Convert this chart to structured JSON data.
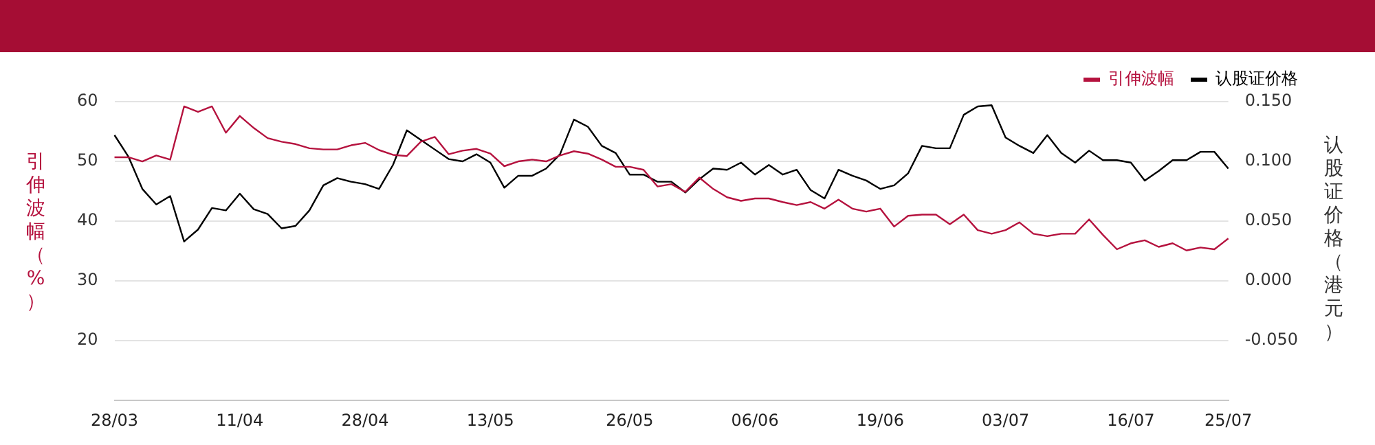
{
  "chart_data": {
    "type": "line",
    "categories": [
      "28/03",
      null,
      null,
      null,
      null,
      null,
      null,
      null,
      null,
      "11/04",
      null,
      null,
      null,
      null,
      null,
      null,
      null,
      null,
      "28/04",
      null,
      null,
      null,
      null,
      null,
      null,
      null,
      null,
      "13/05",
      null,
      null,
      null,
      null,
      null,
      null,
      null,
      null,
      null,
      "26/05",
      null,
      null,
      null,
      null,
      null,
      null,
      null,
      null,
      "06/06",
      null,
      null,
      null,
      null,
      null,
      null,
      null,
      null,
      "19/06",
      null,
      null,
      null,
      null,
      null,
      null,
      null,
      null,
      "03/07",
      null,
      null,
      null,
      null,
      null,
      null,
      null,
      null,
      "16/07",
      null,
      null,
      null,
      null,
      null,
      null,
      "25/07"
    ],
    "series": [
      {
        "name": "引伸波幅",
        "color": "#b5123e",
        "values": [
          50.7,
          50.7,
          50,
          51,
          50.3,
          59.2,
          58.3,
          59.2,
          54.8,
          57.6,
          55.6,
          53.9,
          53.3,
          52.9,
          52.2,
          52,
          52,
          52.7,
          53.1,
          51.9,
          51.1,
          50.9,
          53.3,
          54.1,
          51.2,
          51.8,
          52.1,
          51.3,
          49.2,
          50,
          50.3,
          50,
          51,
          51.7,
          51.3,
          50.3,
          49.1,
          49.1,
          48.6,
          45.8,
          46.2,
          44.9,
          47.3,
          45.4,
          44,
          43.4,
          43.8,
          43.8,
          43.2,
          42.7,
          43.2,
          42.1,
          43.6,
          42.1,
          41.6,
          42.1,
          39.1,
          40.9,
          41.1,
          41.1,
          39.5,
          41.1,
          38.5,
          37.9,
          38.5,
          39.8,
          37.9,
          37.5,
          37.9,
          37.9,
          40.3,
          37.7,
          35.3,
          36.3,
          36.8,
          35.7,
          36.3,
          35.1,
          35.6,
          35.3,
          37.1
        ]
      },
      {
        "name": "认股证价格",
        "color": "#000000",
        "axis": "y2",
        "values": [
          0.122,
          0.104,
          0.077,
          0.064,
          0.071,
          0.033,
          0.043,
          0.061,
          0.059,
          0.073,
          0.06,
          0.056,
          0.044,
          0.046,
          0.059,
          0.08,
          0.086,
          0.083,
          0.081,
          0.077,
          0.097,
          0.126,
          0.118,
          0.11,
          0.102,
          0.1,
          0.106,
          0.099,
          0.078,
          0.088,
          0.088,
          0.094,
          0.106,
          0.135,
          0.129,
          0.113,
          0.107,
          0.089,
          0.089,
          0.083,
          0.083,
          0.074,
          0.085,
          0.094,
          0.093,
          0.099,
          0.089,
          0.097,
          0.089,
          0.093,
          0.076,
          0.069,
          0.093,
          0.088,
          0.084,
          0.077,
          0.08,
          0.09,
          0.113,
          0.111,
          0.111,
          0.139,
          0.146,
          0.147,
          0.12,
          0.113,
          0.107,
          0.122,
          0.107,
          0.099,
          0.109,
          0.101,
          0.101,
          0.099,
          0.084,
          0.092,
          0.101,
          0.101,
          0.108,
          0.108,
          0.094
        ]
      }
    ],
    "ylabel": "引伸波幅（%）",
    "y2label": "认股证价格（港元）",
    "ylim": [
      10,
      60
    ],
    "yticks": [
      20,
      30,
      40,
      50,
      60
    ],
    "y2lim": [
      -0.1,
      0.15
    ],
    "y2ticks": [
      {
        "value": -0.05,
        "label": "-0.050"
      },
      {
        "value": 0,
        "label": "0.000"
      },
      {
        "value": 0.05,
        "label": "0.050"
      },
      {
        "value": 0.1,
        "label": "0.100"
      },
      {
        "value": 0.15,
        "label": "0.150"
      }
    ],
    "grid": "y",
    "legend": "top right",
    "line_style": "solid"
  }
}
